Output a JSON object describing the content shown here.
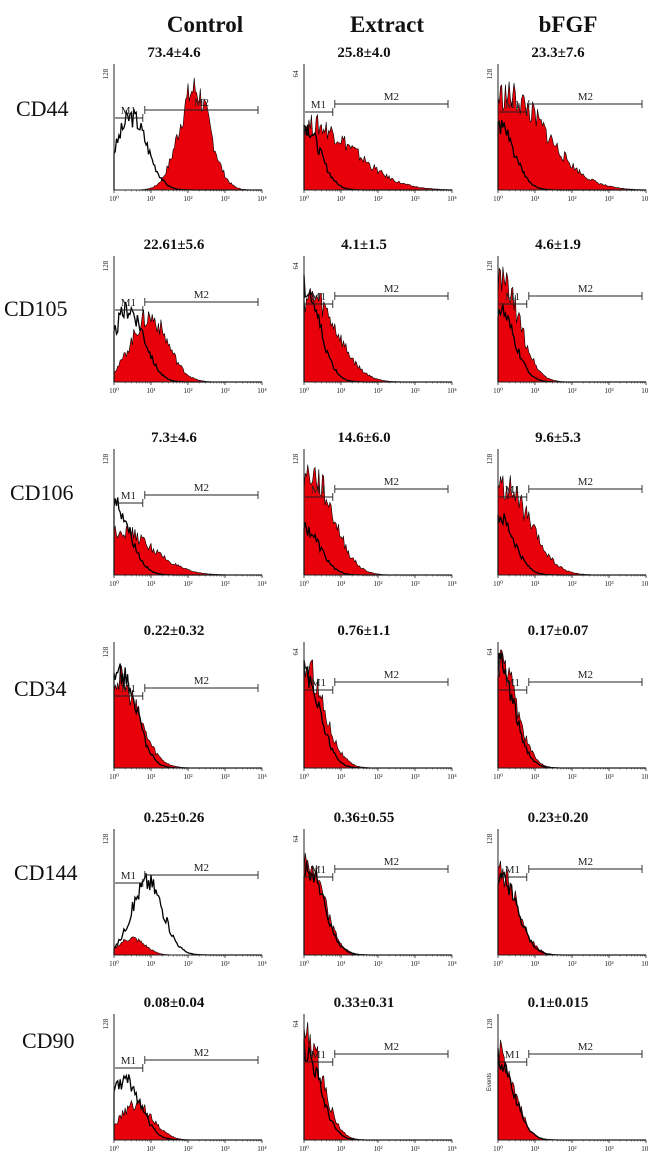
{
  "figure": {
    "columns": [
      "Control",
      "Extract",
      "bFGF"
    ],
    "rows": [
      "CD44",
      "CD105",
      "CD106",
      "CD34",
      "CD144",
      "CD90"
    ]
  },
  "chart_data": {
    "type": "area",
    "x_scale": "log",
    "xlim": [
      1,
      10000
    ],
    "x_tick_labels": [
      "10⁰",
      "10¹",
      "10²",
      "10³",
      "10⁴"
    ],
    "colors": {
      "stained": "#e8000b",
      "isotype": "#000000",
      "axis": "#222222"
    },
    "panels": [
      {
        "row": "CD44",
        "column": "Control",
        "stat": "73.4±4.6",
        "ymax": "128",
        "gates": [
          "M1",
          "M2"
        ],
        "isotype_peak": 3,
        "isotype_height": 0.62,
        "stained_peak": 150,
        "stained_height": 0.85,
        "stained_spread": 0.42
      },
      {
        "row": "CD44",
        "column": "Extract",
        "stat": "25.8±4.0",
        "ymax": "64",
        "gates": [
          "M1",
          "M2"
        ],
        "isotype_peak": 1,
        "isotype_height": 0.55,
        "stained_peak": 1.6,
        "stained_height": 0.55,
        "stained_spread": 1.15
      },
      {
        "row": "CD44",
        "column": "bFGF",
        "stat": "23.3±7.6",
        "ymax": "128",
        "gates": [
          "M1",
          "M2"
        ],
        "isotype_peak": 1,
        "isotype_height": 0.55,
        "stained_peak": 1.6,
        "stained_height": 0.8,
        "stained_spread": 1.1
      },
      {
        "row": "CD105",
        "column": "Control",
        "stat": "22.61±5.6",
        "ymax": "128",
        "gates": [
          "M1",
          "M2"
        ],
        "isotype_peak": 2.5,
        "isotype_height": 0.62,
        "stained_peak": 9,
        "stained_height": 0.55,
        "stained_spread": 0.5
      },
      {
        "row": "CD105",
        "column": "Extract",
        "stat": "4.1±1.5",
        "ymax": "64",
        "gates": [
          "M1",
          "M2"
        ],
        "isotype_peak": 1,
        "isotype_height": 0.8,
        "stained_peak": 1.5,
        "stained_height": 0.72,
        "stained_spread": 0.7
      },
      {
        "row": "CD105",
        "column": "bFGF",
        "stat": "4.6±1.9",
        "ymax": "128",
        "gates": [
          "M1",
          "M2"
        ],
        "isotype_peak": 1,
        "isotype_height": 0.62,
        "stained_peak": 1.2,
        "stained_height": 0.85,
        "stained_spread": 0.5
      },
      {
        "row": "CD106",
        "column": "Control",
        "stat": "7.3±4.6",
        "ymax": "128",
        "gates": [
          "M1",
          "M2"
        ],
        "isotype_peak": 1,
        "isotype_height": 0.62,
        "stained_peak": 1.3,
        "stained_height": 0.38,
        "stained_spread": 0.9
      },
      {
        "row": "CD106",
        "column": "Extract",
        "stat": "14.6±6.0",
        "ymax": "128",
        "gates": [
          "M1",
          "M2"
        ],
        "isotype_peak": 1,
        "isotype_height": 0.4,
        "stained_peak": 1.5,
        "stained_height": 0.85,
        "stained_spread": 0.6
      },
      {
        "row": "CD106",
        "column": "bFGF",
        "stat": "9.6±5.3",
        "ymax": "128",
        "gates": [
          "M1",
          "M2"
        ],
        "isotype_peak": 1,
        "isotype_height": 0.5,
        "stained_peak": 1.4,
        "stained_height": 0.75,
        "stained_spread": 0.7
      },
      {
        "row": "CD34",
        "column": "Control",
        "stat": "0.22±0.32",
        "ymax": "128",
        "gates": [
          "M1",
          "M2"
        ],
        "isotype_peak": 1.5,
        "isotype_height": 0.82,
        "stained_peak": 1.3,
        "stained_height": 0.75,
        "stained_spread": 0.55
      },
      {
        "row": "CD34",
        "column": "Extract",
        "stat": "0.76±1.1",
        "ymax": "64",
        "gates": [
          "M1",
          "M2"
        ],
        "isotype_peak": 1,
        "isotype_height": 0.82,
        "stained_peak": 1.1,
        "stained_height": 0.85,
        "stained_spread": 0.5
      },
      {
        "row": "CD34",
        "column": "bFGF",
        "stat": "0.17±0.07",
        "ymax": "64",
        "gates": [
          "M1",
          "M2"
        ],
        "isotype_peak": 1,
        "isotype_height": 0.88,
        "stained_peak": 1.1,
        "stained_height": 0.9,
        "stained_spread": 0.45
      },
      {
        "row": "CD144",
        "column": "Control",
        "stat": "0.25±0.26",
        "ymax": "128",
        "gates": [
          "M1",
          "M2"
        ],
        "isotype_peak": 8,
        "isotype_height": 0.62,
        "stained_peak": 3,
        "stained_height": 0.14,
        "stained_spread": 0.35
      },
      {
        "row": "CD144",
        "column": "Extract",
        "stat": "0.36±0.55",
        "ymax": "64",
        "gates": [
          "M1",
          "M2"
        ],
        "isotype_peak": 1.3,
        "isotype_height": 0.72,
        "stained_peak": 1.2,
        "stained_height": 0.78,
        "stained_spread": 0.45
      },
      {
        "row": "CD144",
        "column": "bFGF",
        "stat": "0.23±0.20",
        "ymax": "128",
        "gates": [
          "M1",
          "M2"
        ],
        "isotype_peak": 1.3,
        "isotype_height": 0.62,
        "stained_peak": 1.2,
        "stained_height": 0.7,
        "stained_spread": 0.45
      },
      {
        "row": "CD90",
        "column": "Control",
        "stat": "0.08±0.04",
        "ymax": "128",
        "gates": [
          "M1",
          "M2"
        ],
        "isotype_peak": 2,
        "isotype_height": 0.5,
        "stained_peak": 4,
        "stained_height": 0.3,
        "stained_spread": 0.45
      },
      {
        "row": "CD90",
        "column": "Extract",
        "stat": "0.33±0.31",
        "ymax": "64",
        "gates": [
          "M1",
          "M2"
        ],
        "isotype_peak": 1,
        "isotype_height": 0.78,
        "stained_peak": 1.1,
        "stained_height": 0.88,
        "stained_spread": 0.45
      },
      {
        "row": "CD90",
        "column": "bFGF",
        "stat": "0.1±0.015",
        "ymax": "128",
        "gates": [
          "M1",
          "M2"
        ],
        "isotype_peak": 1,
        "isotype_height": 0.68,
        "stained_peak": 1.1,
        "stained_height": 0.74,
        "stained_spread": 0.4,
        "ylabel": "Events"
      }
    ]
  }
}
